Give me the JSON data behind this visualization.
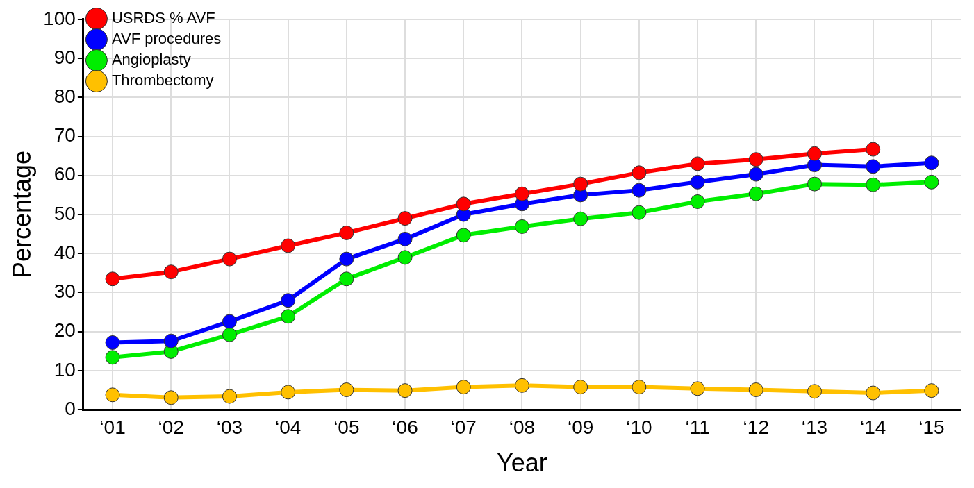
{
  "chart_data": {
    "type": "line",
    "xlabel": "Year",
    "ylabel": "Percentage",
    "categories": [
      "‘01",
      "‘02",
      "‘03",
      "‘04",
      "‘05",
      "‘06",
      "‘07",
      "‘08",
      "‘09",
      "‘10",
      "‘11",
      "‘12",
      "‘13",
      "‘14",
      "‘15"
    ],
    "series": [
      {
        "name": "USRDS % AVF",
        "color": "#ff0000",
        "values": [
          33.5,
          35.3,
          38.6,
          42,
          45.3,
          49,
          52.7,
          55.3,
          57.8,
          60.7,
          63,
          64.1,
          65.6,
          66.7,
          null
        ]
      },
      {
        "name": "AVF procedures",
        "color": "#0000ff",
        "values": [
          17.2,
          17.6,
          22.6,
          28,
          38.6,
          43.7,
          50,
          52.7,
          55,
          56.2,
          58.3,
          60.3,
          62.7,
          62.3,
          63.2
        ]
      },
      {
        "name": "Angioplasty",
        "color": "#00ee00",
        "values": [
          13.4,
          14.9,
          19.2,
          23.9,
          33.5,
          39,
          44.7,
          46.9,
          48.9,
          50.5,
          53.3,
          55.3,
          57.8,
          57.6,
          58.3
        ]
      },
      {
        "name": "Thrombectomy",
        "color": "#ffc000",
        "values": [
          3.8,
          3.1,
          3.4,
          4.5,
          5.1,
          4.9,
          5.8,
          6.2,
          5.8,
          5.8,
          5.4,
          5.1,
          4.7,
          4.3,
          4.9
        ]
      }
    ],
    "ylim": [
      0,
      100
    ],
    "yticks": [
      0,
      10,
      20,
      30,
      40,
      50,
      60,
      70,
      80,
      90,
      100
    ],
    "grid": true,
    "legend": "top left",
    "marker": "circle",
    "line_style": "solid"
  }
}
